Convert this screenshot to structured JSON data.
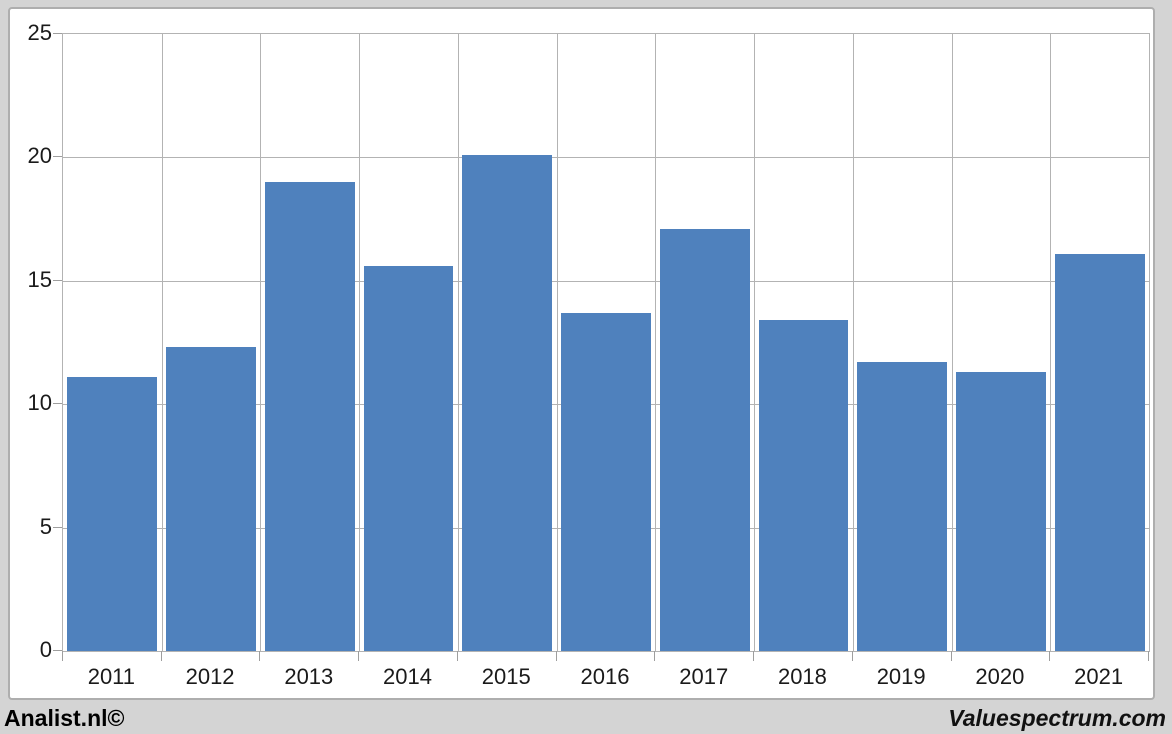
{
  "page": {
    "background_color": "#d4d4d4",
    "panel_background": "#ffffff",
    "border_color": "#aeaeae"
  },
  "footer": {
    "left_text": "Analist.nl©",
    "right_text": "Valuespectrum.com"
  },
  "chart_data": {
    "type": "bar",
    "title": "",
    "xlabel": "",
    "ylabel": "",
    "categories": [
      "2011",
      "2012",
      "2013",
      "2014",
      "2015",
      "2016",
      "2017",
      "2018",
      "2019",
      "2020",
      "2021"
    ],
    "values": [
      11.1,
      12.3,
      19.0,
      15.6,
      20.1,
      13.7,
      17.1,
      13.4,
      11.7,
      11.3,
      16.1
    ],
    "ylim": [
      0,
      25
    ],
    "yticks": [
      0,
      5,
      10,
      15,
      20,
      25
    ],
    "grid": true,
    "legend": false,
    "bar_color": "#4f81bd",
    "gridline_color": "#b3b3b3",
    "axis_text_color": "#1a1a1a"
  }
}
